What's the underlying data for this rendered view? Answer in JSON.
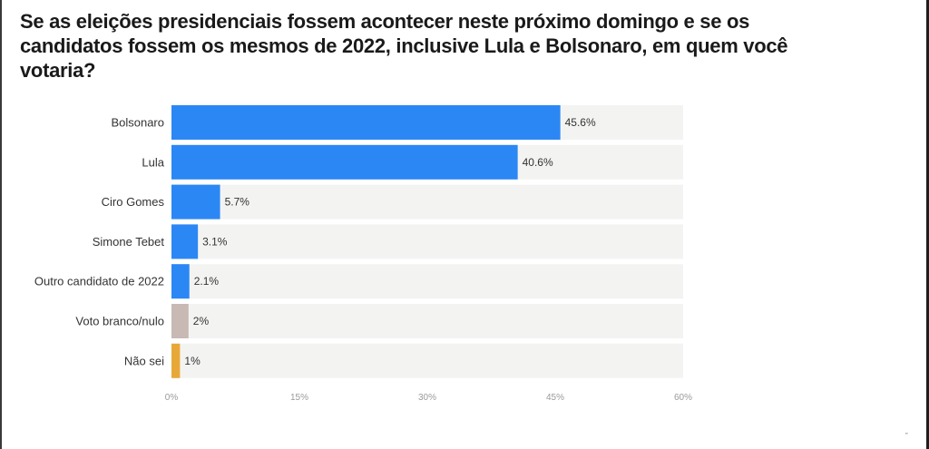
{
  "title": "Se as eleições presidenciais fossem acontecer neste próximo domingo e se os candidatos fossem os mesmos de 2022, inclusive Lula e Bolsonaro, em quem você votaria?",
  "chart_data": {
    "type": "bar",
    "orientation": "horizontal",
    "categories": [
      "Bolsonaro",
      "Lula",
      "Ciro Gomes",
      "Simone Tebet",
      "Outro candidato de 2022",
      "Voto branco/nulo",
      "Não sei"
    ],
    "values": [
      45.6,
      40.6,
      5.7,
      3.1,
      2.1,
      2,
      1
    ],
    "value_labels": [
      "45.6%",
      "40.6%",
      "5.7%",
      "3.1%",
      "2.1%",
      "2%",
      "1%"
    ],
    "colors": [
      "#2b87f4",
      "#2b87f4",
      "#2b87f4",
      "#2b87f4",
      "#2b87f4",
      "#c8b9b4",
      "#e8a838"
    ],
    "track_color": "#f3f3f2",
    "xlim": [
      0,
      60
    ],
    "xticks": [
      0,
      15,
      30,
      45,
      60
    ],
    "xtick_labels": [
      "0%",
      "15%",
      "30%",
      "45%",
      "60%"
    ],
    "grid": false
  }
}
